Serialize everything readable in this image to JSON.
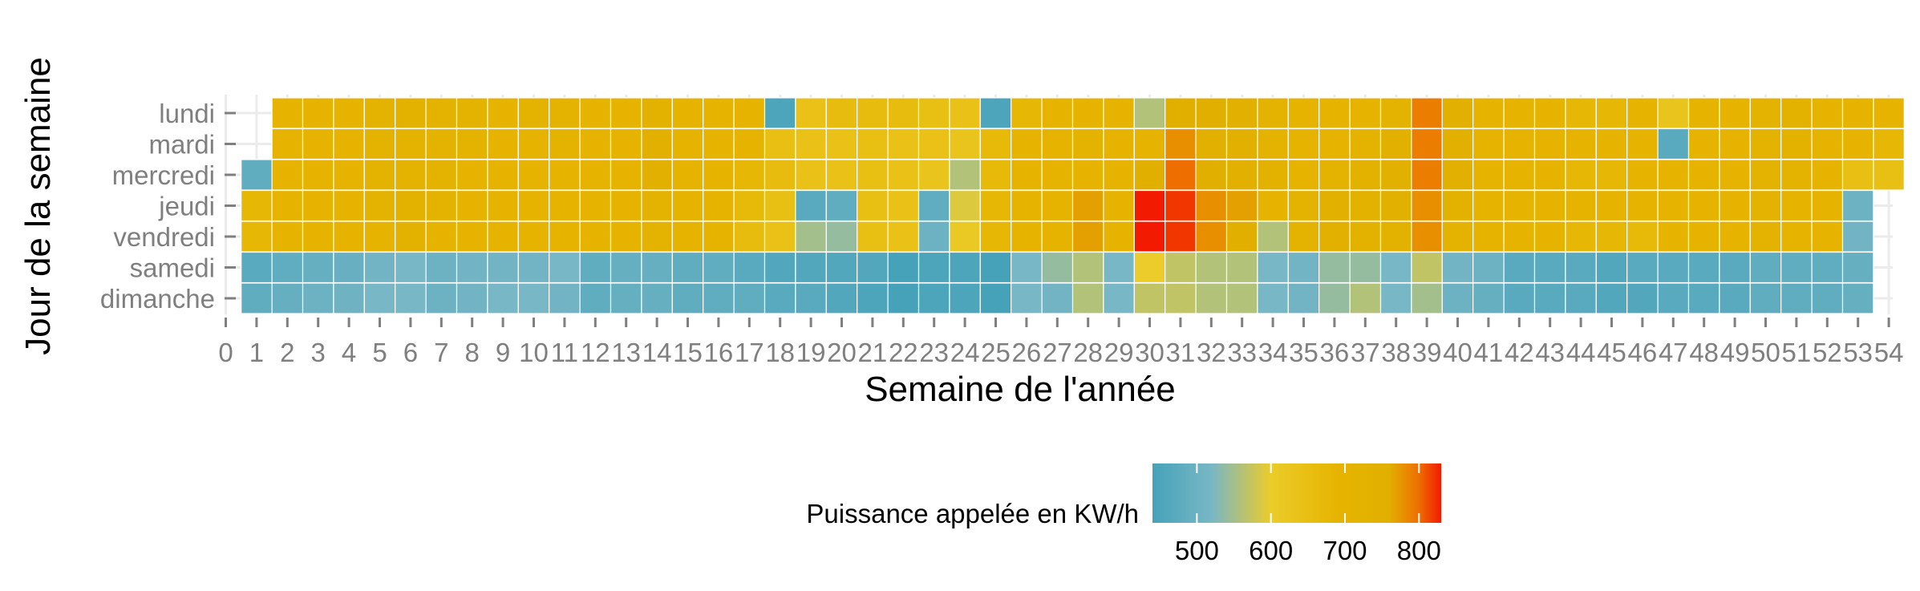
{
  "chart_data": {
    "type": "heatmap",
    "xlabel": "Semaine de l'année",
    "ylabel": "Jour de la semaine",
    "x_ticks": [
      0,
      1,
      2,
      3,
      4,
      5,
      6,
      7,
      8,
      9,
      10,
      11,
      12,
      13,
      14,
      15,
      16,
      17,
      18,
      19,
      20,
      21,
      22,
      23,
      24,
      25,
      26,
      27,
      28,
      29,
      30,
      31,
      32,
      33,
      34,
      35,
      36,
      37,
      38,
      39,
      40,
      41,
      42,
      43,
      44,
      45,
      46,
      47,
      48,
      49,
      50,
      51,
      52,
      53,
      54
    ],
    "xlim": [
      0,
      54
    ],
    "days": [
      "lundi",
      "mardi",
      "mercredi",
      "jeudi",
      "vendredi",
      "samedi",
      "dimanche"
    ],
    "legend": {
      "title": "Puissance appelée en KW/h",
      "ticks": [
        500,
        600,
        700,
        800
      ],
      "range": [
        440,
        830
      ],
      "position": "bottom",
      "stops": [
        {
          "value": 440,
          "color": "#46A2B9"
        },
        {
          "value": 520,
          "color": "#78B7C5"
        },
        {
          "value": 600,
          "color": "#EBCC2A"
        },
        {
          "value": 690,
          "color": "#E6B400"
        },
        {
          "value": 760,
          "color": "#E1AF00"
        },
        {
          "value": 800,
          "color": "#EE6E00"
        },
        {
          "value": 830,
          "color": "#F21A00"
        }
      ]
    },
    "grid": true,
    "week_start": 1,
    "values": [
      [
        null,
        690,
        700,
        710,
        715,
        735,
        725,
        715,
        705,
        715,
        725,
        700,
        700,
        730,
        710,
        690,
        690,
        450,
        640,
        660,
        660,
        660,
        650,
        640,
        450,
        680,
        700,
        710,
        700,
        560,
        760,
        760,
        740,
        720,
        700,
        700,
        700,
        720,
        790,
        740,
        710,
        700,
        690,
        680,
        680,
        690,
        630,
        690,
        690,
        720,
        730,
        710,
        690,
        690
      ],
      [
        null,
        700,
        705,
        710,
        720,
        725,
        720,
        715,
        710,
        705,
        715,
        700,
        710,
        750,
        710,
        690,
        690,
        650,
        640,
        640,
        650,
        640,
        640,
        630,
        670,
        690,
        700,
        720,
        710,
        700,
        780,
        750,
        740,
        720,
        700,
        710,
        720,
        740,
        790,
        750,
        710,
        700,
        700,
        690,
        690,
        690,
        470,
        690,
        700,
        720,
        730,
        700,
        690,
        680
      ],
      [
        480,
        700,
        705,
        710,
        715,
        725,
        715,
        710,
        705,
        700,
        710,
        700,
        710,
        740,
        710,
        690,
        680,
        660,
        640,
        640,
        650,
        640,
        630,
        560,
        670,
        690,
        700,
        710,
        700,
        760,
        800,
        760,
        750,
        730,
        710,
        720,
        730,
        740,
        790,
        740,
        710,
        700,
        690,
        680,
        680,
        690,
        690,
        690,
        700,
        720,
        720,
        700,
        650,
        650
      ],
      [
        680,
        690,
        700,
        705,
        715,
        735,
        715,
        710,
        705,
        700,
        710,
        700,
        700,
        720,
        710,
        690,
        670,
        650,
        470,
        480,
        650,
        640,
        480,
        590,
        680,
        690,
        710,
        770,
        700,
        830,
        820,
        780,
        770,
        700,
        720,
        740,
        730,
        740,
        780,
        730,
        710,
        700,
        690,
        690,
        690,
        690,
        690,
        690,
        700,
        720,
        700,
        690,
        500,
        null
      ],
      [
        680,
        690,
        700,
        705,
        710,
        730,
        710,
        705,
        700,
        695,
        705,
        700,
        700,
        720,
        705,
        690,
        660,
        640,
        550,
        540,
        650,
        640,
        500,
        610,
        680,
        690,
        710,
        770,
        700,
        830,
        820,
        780,
        760,
        560,
        720,
        740,
        730,
        730,
        780,
        720,
        700,
        690,
        690,
        680,
        680,
        670,
        690,
        690,
        690,
        720,
        700,
        690,
        510,
        null
      ],
      [
        470,
        480,
        490,
        495,
        510,
        520,
        500,
        510,
        510,
        510,
        520,
        480,
        490,
        490,
        480,
        480,
        470,
        460,
        460,
        460,
        460,
        440,
        450,
        450,
        440,
        520,
        540,
        560,
        520,
        600,
        570,
        560,
        560,
        520,
        510,
        540,
        540,
        520,
        570,
        510,
        500,
        470,
        470,
        470,
        460,
        470,
        470,
        470,
        470,
        480,
        480,
        480,
        490,
        null
      ],
      [
        480,
        490,
        500,
        505,
        520,
        520,
        500,
        510,
        520,
        520,
        510,
        480,
        490,
        490,
        480,
        480,
        480,
        470,
        470,
        460,
        450,
        440,
        450,
        450,
        440,
        520,
        510,
        560,
        520,
        570,
        570,
        560,
        560,
        520,
        510,
        540,
        560,
        520,
        550,
        500,
        490,
        470,
        470,
        470,
        460,
        460,
        470,
        470,
        470,
        480,
        480,
        480,
        490,
        null
      ]
    ]
  }
}
